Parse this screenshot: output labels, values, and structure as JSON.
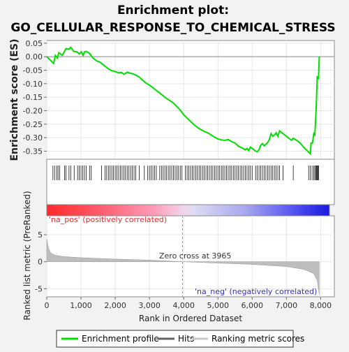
{
  "chart_data": {
    "type": "line",
    "title_line1": "Enrichment plot:",
    "title_line2": "GO_CELLULAR_RESPONSE_TO_CHEMICAL_STRESS",
    "es_plot": {
      "ylabel": "Enrichment score (ES)",
      "ylim": [
        -0.38,
        0.06
      ],
      "yticks": [
        "0.05",
        "0.00",
        "-0.05",
        "-0.10",
        "-0.15",
        "-0.20",
        "-0.25",
        "-0.30",
        "-0.35"
      ],
      "ytick_values": [
        0.05,
        0.0,
        -0.05,
        -0.1,
        -0.15,
        -0.2,
        -0.25,
        -0.3,
        -0.35
      ],
      "series_name": "Enrichment profile",
      "color": "#00dd00",
      "points": [
        [
          0,
          0.0
        ],
        [
          200,
          -0.025
        ],
        [
          250,
          0.005
        ],
        [
          310,
          -0.005
        ],
        [
          350,
          0.015
        ],
        [
          450,
          0.005
        ],
        [
          520,
          0.02
        ],
        [
          560,
          0.03
        ],
        [
          650,
          0.028
        ],
        [
          700,
          0.035
        ],
        [
          780,
          0.02
        ],
        [
          880,
          0.018
        ],
        [
          950,
          0.01
        ],
        [
          1010,
          0.018
        ],
        [
          1060,
          0.005
        ],
        [
          1100,
          0.018
        ],
        [
          1150,
          0.02
        ],
        [
          1250,
          0.012
        ],
        [
          1350,
          -0.005
        ],
        [
          1450,
          -0.015
        ],
        [
          1550,
          -0.02
        ],
        [
          1650,
          -0.03
        ],
        [
          1800,
          -0.045
        ],
        [
          1900,
          -0.052
        ],
        [
          2000,
          -0.055
        ],
        [
          2100,
          -0.06
        ],
        [
          2180,
          -0.058
        ],
        [
          2250,
          -0.065
        ],
        [
          2300,
          -0.062
        ],
        [
          2360,
          -0.057
        ],
        [
          2400,
          -0.06
        ],
        [
          2500,
          -0.063
        ],
        [
          2600,
          -0.068
        ],
        [
          2700,
          -0.075
        ],
        [
          2800,
          -0.087
        ],
        [
          2900,
          -0.098
        ],
        [
          3000,
          -0.105
        ],
        [
          3100,
          -0.115
        ],
        [
          3200,
          -0.125
        ],
        [
          3300,
          -0.135
        ],
        [
          3400,
          -0.145
        ],
        [
          3500,
          -0.155
        ],
        [
          3600,
          -0.163
        ],
        [
          3700,
          -0.172
        ],
        [
          3800,
          -0.185
        ],
        [
          3900,
          -0.198
        ],
        [
          4000,
          -0.215
        ],
        [
          4100,
          -0.228
        ],
        [
          4200,
          -0.24
        ],
        [
          4300,
          -0.252
        ],
        [
          4400,
          -0.262
        ],
        [
          4500,
          -0.27
        ],
        [
          4600,
          -0.277
        ],
        [
          4700,
          -0.282
        ],
        [
          4800,
          -0.29
        ],
        [
          4900,
          -0.298
        ],
        [
          5000,
          -0.305
        ],
        [
          5100,
          -0.308
        ],
        [
          5200,
          -0.31
        ],
        [
          5300,
          -0.307
        ],
        [
          5400,
          -0.315
        ],
        [
          5500,
          -0.32
        ],
        [
          5600,
          -0.332
        ],
        [
          5700,
          -0.338
        ],
        [
          5800,
          -0.345
        ],
        [
          5850,
          -0.34
        ],
        [
          5900,
          -0.348
        ],
        [
          5950,
          -0.335
        ],
        [
          6000,
          -0.34
        ],
        [
          6100,
          -0.35
        ],
        [
          6150,
          -0.352
        ],
        [
          6200,
          -0.345
        ],
        [
          6250,
          -0.328
        ],
        [
          6300,
          -0.322
        ],
        [
          6350,
          -0.33
        ],
        [
          6400,
          -0.325
        ],
        [
          6450,
          -0.318
        ],
        [
          6500,
          -0.308
        ],
        [
          6550,
          -0.285
        ],
        [
          6600,
          -0.295
        ],
        [
          6650,
          -0.29
        ],
        [
          6700,
          -0.282
        ],
        [
          6750,
          -0.295
        ],
        [
          6800,
          -0.275
        ],
        [
          6900,
          -0.285
        ],
        [
          7000,
          -0.295
        ],
        [
          7100,
          -0.305
        ],
        [
          7150,
          -0.31
        ],
        [
          7200,
          -0.302
        ],
        [
          7300,
          -0.31
        ],
        [
          7400,
          -0.32
        ],
        [
          7500,
          -0.335
        ],
        [
          7600,
          -0.348
        ],
        [
          7700,
          -0.36
        ],
        [
          7720,
          -0.32
        ],
        [
          7760,
          -0.32
        ],
        [
          7800,
          -0.285
        ],
        [
          7830,
          -0.29
        ],
        [
          7850,
          -0.245
        ],
        [
          7870,
          -0.19
        ],
        [
          7900,
          -0.075
        ],
        [
          7940,
          -0.08
        ],
        [
          7960,
          0.0
        ]
      ]
    },
    "hits": {
      "series_name": "Hits",
      "positions": [
        180,
        230,
        290,
        330,
        380,
        520,
        560,
        650,
        700,
        800,
        900,
        950,
        1000,
        1050,
        1100,
        1150,
        1250,
        1300,
        1600,
        1700,
        1750,
        1800,
        1850,
        1900,
        1950,
        2000,
        2050,
        2100,
        2150,
        2200,
        2250,
        2300,
        2350,
        2400,
        2450,
        2500,
        2550,
        2600,
        2700,
        2850,
        2950,
        3000,
        3050,
        3100,
        3150,
        3200,
        3300,
        3350,
        3400,
        3450,
        3500,
        3550,
        3600,
        3650,
        3700,
        3750,
        3800,
        3850,
        3900,
        3950,
        4050,
        4100,
        4150,
        4200,
        4250,
        4300,
        4350,
        4400,
        4450,
        4500,
        4550,
        4600,
        4650,
        4700,
        4750,
        4800,
        4850,
        4900,
        4950,
        5000,
        5050,
        5100,
        5150,
        5200,
        5250,
        5300,
        5350,
        5400,
        5450,
        5500,
        5550,
        5600,
        5650,
        5700,
        5750,
        5800,
        5850,
        5900,
        5950,
        6000,
        6100,
        6150,
        6200,
        6250,
        6300,
        6350,
        6400,
        6450,
        6500,
        6550,
        6600,
        6650,
        6700,
        6750,
        6800,
        6900,
        7200,
        7650,
        7700,
        7750,
        7800,
        7830,
        7860,
        7880,
        7900,
        7920,
        7940
      ]
    },
    "heat_bar": {
      "label_pos": "'na_pos' (positively correlated)",
      "label_neg": "'na_neg' (negatively correlated)"
    },
    "rank_plot": {
      "ylabel": "Ranked list metric (PreRanked)",
      "xlabel": "Rank in Ordered Dataset",
      "ylim": [
        -6.5,
        8.5
      ],
      "yticks": [
        "5",
        "0",
        "-5"
      ],
      "ytick_values": [
        5,
        0,
        -5
      ],
      "xlim": [
        0,
        8400
      ],
      "xticks": [
        "0",
        "1,000",
        "2,000",
        "3,000",
        "4,000",
        "5,000",
        "6,000",
        "7,000",
        "8,000"
      ],
      "xtick_values": [
        0,
        1000,
        2000,
        3000,
        4000,
        5000,
        6000,
        7000,
        8000
      ],
      "zero_cross_label": "Zero cross at 3965",
      "zero_cross": 3965,
      "series_name": "Ranking metric scores",
      "points": [
        [
          0,
          4.2
        ],
        [
          50,
          2.5
        ],
        [
          120,
          1.6
        ],
        [
          250,
          1.2
        ],
        [
          500,
          0.95
        ],
        [
          1000,
          0.75
        ],
        [
          2000,
          0.5
        ],
        [
          3000,
          0.3
        ],
        [
          3965,
          0.0
        ],
        [
          5000,
          -0.25
        ],
        [
          6000,
          -0.5
        ],
        [
          7000,
          -0.9
        ],
        [
          7500,
          -1.4
        ],
        [
          7800,
          -2.2
        ],
        [
          7900,
          -3.5
        ],
        [
          7960,
          -6.2
        ]
      ]
    },
    "legend": [
      "Enrichment profile",
      "Hits",
      "Ranking metric scores"
    ]
  }
}
